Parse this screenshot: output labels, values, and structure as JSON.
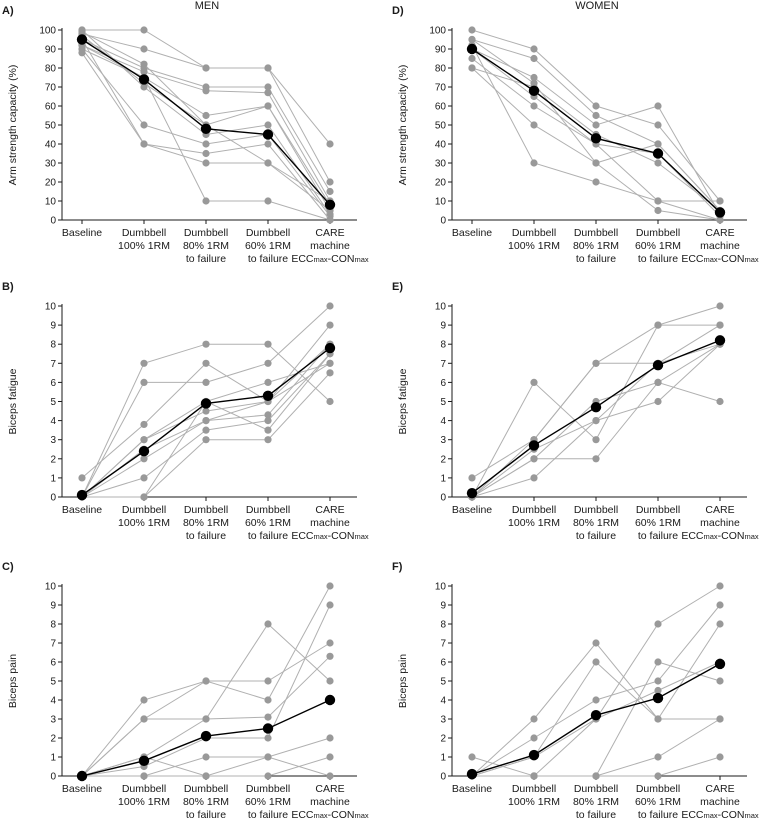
{
  "figure": {
    "column_titles": [
      "MEN",
      "WOMEN"
    ]
  },
  "colors": {
    "individual": "#999999",
    "individual_line": "#b0b0b0",
    "mean": "#000000",
    "axis": "#1a1a1a"
  },
  "categories": [
    [
      "Baseline"
    ],
    [
      "Dumbbell",
      "100% 1RM"
    ],
    [
      "Dumbbell",
      "80% 1RM",
      "to failure"
    ],
    [
      "Dumbbell",
      "60% 1RM",
      "to failure"
    ],
    [
      "CARE",
      "machine",
      "ECCmax-CONmax"
    ]
  ],
  "chart_data": [
    {
      "panel": "A)",
      "column": "MEN",
      "type": "line",
      "ylabel": "Arm strength capacity (%)",
      "ylim": [
        0,
        100
      ],
      "yticks": [
        0,
        10,
        20,
        30,
        40,
        50,
        60,
        70,
        80,
        90,
        100
      ],
      "mean": [
        95,
        74,
        48,
        45,
        8
      ],
      "series": [
        [
          100,
          100,
          80,
          80,
          40
        ],
        [
          98,
          90,
          80,
          80,
          20
        ],
        [
          95,
          80,
          70,
          70,
          15
        ],
        [
          92,
          78,
          68,
          67,
          10
        ],
        [
          90,
          75,
          55,
          60,
          8
        ],
        [
          97,
          72,
          50,
          60,
          5
        ],
        [
          100,
          70,
          45,
          50,
          3
        ],
        [
          90,
          50,
          40,
          45,
          2
        ],
        [
          88,
          40,
          35,
          40,
          0
        ],
        [
          95,
          40,
          30,
          30,
          10
        ],
        [
          92,
          75,
          10,
          10,
          0
        ],
        [
          99,
          82,
          50,
          30,
          5
        ]
      ]
    },
    {
      "panel": "D)",
      "column": "WOMEN",
      "type": "line",
      "ylabel": "Arm strength capacity (%)",
      "ylim": [
        0,
        100
      ],
      "yticks": [
        0,
        10,
        20,
        30,
        40,
        50,
        60,
        70,
        80,
        90,
        100
      ],
      "mean": [
        90,
        68,
        43,
        35,
        4
      ],
      "series": [
        [
          100,
          90,
          60,
          50,
          10
        ],
        [
          95,
          85,
          55,
          40,
          5
        ],
        [
          90,
          75,
          50,
          60,
          3
        ],
        [
          80,
          70,
          45,
          30,
          5
        ],
        [
          90,
          65,
          40,
          35,
          2
        ],
        [
          85,
          60,
          40,
          10,
          0
        ],
        [
          80,
          50,
          30,
          5,
          0
        ],
        [
          92,
          30,
          20,
          10,
          10
        ],
        [
          95,
          72,
          30,
          40,
          5
        ]
      ]
    },
    {
      "panel": "B)",
      "column": "MEN",
      "type": "line",
      "ylabel": "Biceps fatigue",
      "ylim": [
        0,
        10
      ],
      "yticks": [
        0,
        1,
        2,
        3,
        4,
        5,
        6,
        7,
        8,
        9,
        10
      ],
      "mean": [
        0.1,
        2.4,
        4.9,
        5.3,
        7.8
      ],
      "series": [
        [
          0,
          7,
          8,
          8,
          5
        ],
        [
          0,
          6,
          6,
          7,
          10
        ],
        [
          1,
          3.8,
          7,
          5,
          9
        ],
        [
          0,
          3,
          5,
          6,
          7
        ],
        [
          0,
          2,
          4,
          4.3,
          8
        ],
        [
          0,
          1,
          3.5,
          4,
          7.5
        ],
        [
          0,
          0,
          3,
          3,
          6.5
        ],
        [
          0,
          2.5,
          4,
          5,
          7
        ],
        [
          0,
          0,
          5,
          3.5,
          7.5
        ],
        [
          0,
          3,
          4.5,
          5,
          8
        ]
      ]
    },
    {
      "panel": "E)",
      "column": "WOMEN",
      "type": "line",
      "ylabel": "Biceps fatigue",
      "ylim": [
        0,
        10
      ],
      "yticks": [
        0,
        1,
        2,
        3,
        4,
        5,
        6,
        7,
        8,
        9,
        10
      ],
      "mean": [
        0.2,
        2.7,
        4.7,
        6.9,
        8.2
      ],
      "series": [
        [
          0,
          6,
          3,
          9,
          9
        ],
        [
          1,
          3,
          7,
          9,
          10
        ],
        [
          0,
          2,
          5,
          6,
          8
        ],
        [
          0,
          1,
          4,
          5,
          8
        ],
        [
          0,
          2,
          2,
          6,
          5
        ],
        [
          0,
          3,
          7,
          7,
          8
        ],
        [
          0,
          2.5,
          4,
          7,
          9
        ]
      ]
    },
    {
      "panel": "C)",
      "column": "MEN",
      "type": "line",
      "ylabel": "Biceps pain",
      "ylim": [
        0,
        10
      ],
      "yticks": [
        0,
        1,
        2,
        3,
        4,
        5,
        6,
        7,
        8,
        9,
        10
      ],
      "mean": [
        0,
        0.8,
        2.1,
        2.5,
        4
      ],
      "series": [
        [
          0,
          4,
          5,
          4,
          10
        ],
        [
          0,
          3,
          3,
          8,
          5
        ],
        [
          0,
          3,
          5,
          5,
          7
        ],
        [
          0,
          1,
          3,
          3.1,
          6.3
        ],
        [
          0,
          0.5,
          2,
          2,
          9
        ],
        [
          0,
          0,
          1,
          1,
          2
        ],
        [
          0,
          0,
          0,
          0,
          1
        ],
        [
          0,
          1,
          0,
          1,
          0
        ]
      ]
    },
    {
      "panel": "F)",
      "column": "WOMEN",
      "type": "line",
      "ylabel": "Biceps pain",
      "ylim": [
        0,
        10
      ],
      "yticks": [
        0,
        1,
        2,
        3,
        4,
        5,
        6,
        7,
        8,
        9,
        10
      ],
      "mean": [
        0.1,
        1.1,
        3.2,
        4.1,
        5.9
      ],
      "series": [
        [
          0,
          3,
          7,
          3,
          3
        ],
        [
          1,
          0,
          3,
          8,
          10
        ],
        [
          0,
          2,
          4,
          5,
          9
        ],
        [
          0,
          1,
          6,
          3,
          8
        ],
        [
          0,
          0,
          0,
          6,
          5
        ],
        [
          0,
          0,
          0,
          1,
          3
        ],
        [
          0,
          0,
          0,
          0,
          1
        ],
        [
          0,
          1,
          3,
          4.5,
          6
        ]
      ]
    }
  ]
}
